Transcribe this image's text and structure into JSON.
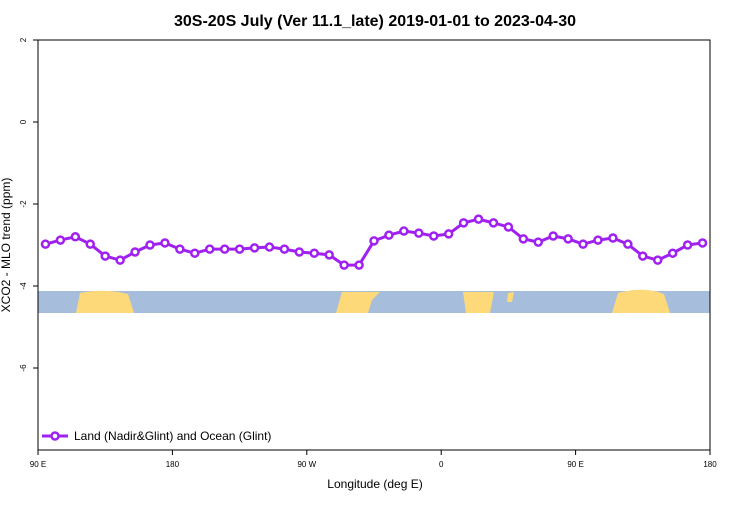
{
  "chart_data": {
    "type": "line",
    "title": "30S-20S July (Ver 11.1_late)   2019-01-01 to 2023-04-30",
    "xlabel": "Longitude (deg E)",
    "ylabel": "XCO2 - MLO trend (ppm)",
    "x": [
      95,
      105,
      115,
      125,
      135,
      145,
      155,
      165,
      175,
      185,
      195,
      205,
      215,
      225,
      235,
      245,
      255,
      265,
      275,
      285,
      295,
      305,
      315,
      325,
      335,
      345,
      355,
      365,
      375,
      385,
      395,
      405,
      415,
      425,
      435,
      445,
      455,
      465,
      475,
      485,
      495,
      505,
      515,
      525,
      535
    ],
    "series": [
      {
        "name": "Land (Nadir&Glint) and Ocean (Glint)",
        "color": "#a020f0",
        "values": [
          -2.98,
          -2.88,
          -2.8,
          -2.98,
          -3.27,
          -3.37,
          -3.17,
          -3.0,
          -2.95,
          -3.1,
          -3.2,
          -3.1,
          -3.1,
          -3.1,
          -3.07,
          -3.05,
          -3.1,
          -3.17,
          -3.2,
          -3.24,
          -3.49,
          -3.49,
          -2.9,
          -2.76,
          -2.66,
          -2.71,
          -2.78,
          -2.73,
          -2.46,
          -2.37,
          -2.46,
          -2.56,
          -2.85,
          -2.93,
          -2.78,
          -2.85,
          -2.98,
          -2.88,
          -2.83,
          -2.98,
          -3.27,
          -3.37,
          -3.2,
          -3.0,
          -2.95
        ]
      }
    ],
    "xlim": [
      90,
      540
    ],
    "ylim": [
      -8,
      2
    ],
    "xticks": [
      {
        "value": 90,
        "label": "90 E"
      },
      {
        "value": 180,
        "label": "180"
      },
      {
        "value": 270,
        "label": "90 W"
      },
      {
        "value": 360,
        "label": "0"
      },
      {
        "value": 450,
        "label": "90 E"
      },
      {
        "value": 540,
        "label": "180"
      }
    ],
    "yticks": [
      2,
      0,
      -2,
      -4,
      -6
    ],
    "legend": "bottom-left"
  }
}
